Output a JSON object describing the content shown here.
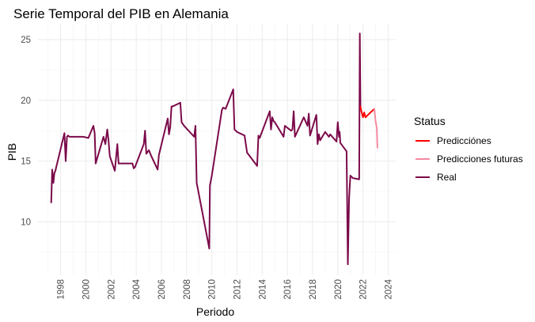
{
  "chart_data": {
    "type": "line",
    "title": "Serie Temporal del PIB en Alemania",
    "xlabel": "Periodo",
    "ylabel": "PIB",
    "xlim": [
      1996.2,
      2024.6
    ],
    "ylim": [
      5.6,
      26.3
    ],
    "x_ticks": [
      1998,
      2000,
      2002,
      2004,
      2006,
      2008,
      2010,
      2012,
      2014,
      2016,
      2018,
      2020,
      2022,
      2024
    ],
    "x_tick_labels": [
      "1998",
      "2000",
      "2002",
      "2004",
      "2006",
      "2008",
      "2010",
      "2012",
      "2014",
      "2016",
      "2018",
      "2020",
      "2022",
      "2024"
    ],
    "y_ticks": [
      10,
      15,
      20,
      25
    ],
    "y_tick_labels": [
      "10",
      "15",
      "20",
      "25"
    ],
    "grid": true,
    "legend": {
      "title": "Status",
      "position": "right"
    },
    "series": [
      {
        "name": "Real",
        "color": "#7b0a4a",
        "x": [
          1997.25,
          1997.33,
          1997.42,
          1997.5,
          1997.58,
          1998.3,
          1998.4,
          1998.5,
          1998.58,
          1998.7,
          1999.8,
          2000.2,
          2000.6,
          2000.7,
          2000.78,
          2001.4,
          2001.55,
          2001.7,
          2001.8,
          2001.9,
          2002.3,
          2002.5,
          2002.6,
          2002.65,
          2003.7,
          2003.8,
          2003.9,
          2004.6,
          2004.7,
          2004.8,
          2005.0,
          2005.2,
          2005.7,
          2005.8,
          2006.5,
          2006.6,
          2006.7,
          2006.8,
          2006.9,
          2007.5,
          2007.6,
          2007.8,
          2008.6,
          2008.7,
          2008.8,
          2009.8,
          2009.85,
          2010.0,
          2010.8,
          2010.9,
          2011.1,
          2011.7,
          2011.8,
          2012.0,
          2012.6,
          2012.8,
          2013.6,
          2013.7,
          2013.8,
          2014.6,
          2014.7,
          2014.8,
          2014.9,
          2015.0,
          2015.7,
          2015.8,
          2016.3,
          2016.4,
          2016.5,
          2016.6,
          2017.3,
          2017.6,
          2017.7,
          2017.8,
          2018.3,
          2018.4,
          2018.5,
          2018.6,
          2019.0,
          2019.3,
          2019.4,
          2019.9,
          2020.0,
          2020.1,
          2020.15,
          2020.2,
          2020.7,
          2020.8,
          2020.9,
          2021.0,
          2021.1,
          2021.2,
          2021.7,
          2021.75,
          2021.8
        ],
        "values": [
          11.6,
          14.3,
          13.2,
          14.0,
          14.2,
          17.3,
          15.0,
          17.0,
          17.1,
          17.0,
          17.0,
          16.9,
          17.9,
          17.3,
          14.8,
          17.0,
          16.4,
          17.6,
          16.7,
          15.4,
          14.2,
          16.4,
          14.8,
          14.8,
          14.8,
          14.4,
          14.5,
          16.4,
          17.5,
          15.6,
          15.9,
          15.4,
          14.3,
          15.5,
          18.5,
          17.2,
          17.8,
          19.5,
          19.5,
          19.8,
          18.2,
          17.9,
          17.0,
          17.9,
          13.2,
          7.8,
          13.0,
          13.8,
          19.2,
          19.4,
          19.3,
          20.9,
          17.6,
          17.4,
          17.1,
          15.7,
          14.6,
          17.1,
          16.9,
          19.1,
          17.6,
          18.6,
          18.3,
          18.2,
          17.0,
          17.9,
          17.5,
          17.6,
          19.1,
          17.0,
          18.6,
          17.9,
          18.9,
          17.1,
          18.8,
          16.4,
          17.2,
          16.7,
          17.4,
          17.0,
          17.2,
          16.6,
          18.2,
          17.0,
          17.4,
          16.5,
          15.8,
          6.5,
          12.0,
          13.8,
          13.7,
          13.6,
          13.5,
          25.5,
          19.5
        ]
      },
      {
        "name": "Predicciónes",
        "color": "#ff0000",
        "x": [
          2021.8,
          2021.85,
          2022.0,
          2022.1,
          2022.2,
          2022.3,
          2022.5,
          2022.6,
          2022.7,
          2022.8,
          2022.9
        ],
        "values": [
          19.5,
          19.2,
          18.6,
          19.0,
          18.6,
          18.7,
          18.9,
          19.0,
          19.1,
          19.2,
          19.3
        ]
      },
      {
        "name": "Predicciones futuras",
        "color": "#f58aa2",
        "x": [
          2022.9,
          2023.0,
          2023.1,
          2023.15
        ],
        "values": [
          19.3,
          18.3,
          17.7,
          16.1
        ]
      }
    ]
  }
}
